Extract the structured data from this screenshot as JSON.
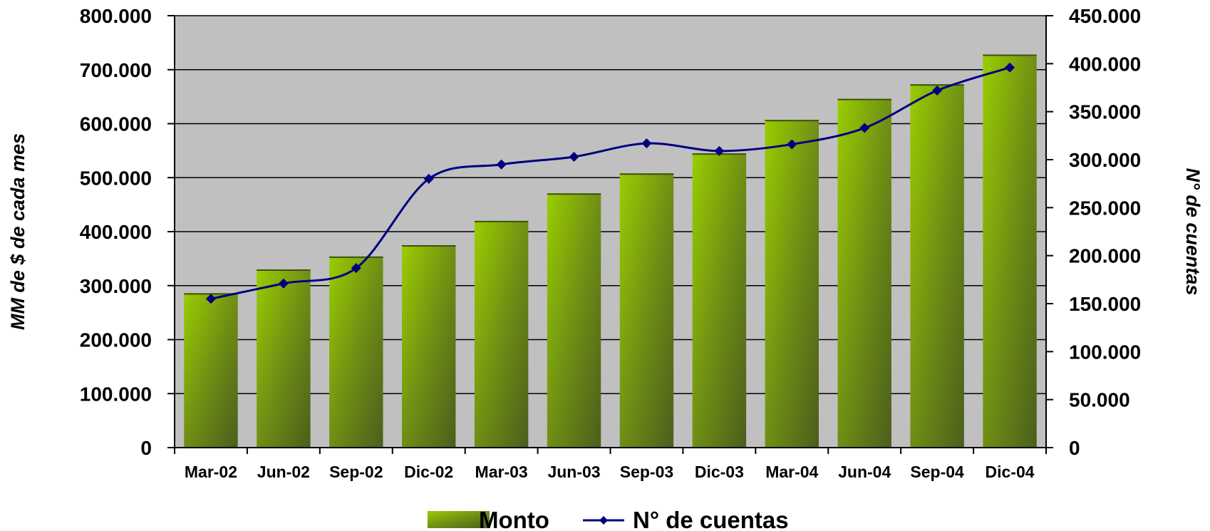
{
  "chart_data": {
    "type": "bar",
    "categories": [
      "Mar-02",
      "Jun-02",
      "Sep-02",
      "Dic-02",
      "Mar-03",
      "Jun-03",
      "Sep-03",
      "Dic-03",
      "Mar-04",
      "Jun-04",
      "Sep-04",
      "Dic-04"
    ],
    "series": [
      {
        "name": "Monto",
        "type": "bar",
        "axis": "left",
        "values": [
          286000,
          330000,
          354000,
          375000,
          420000,
          471000,
          508000,
          545000,
          607000,
          646000,
          673000,
          728000
        ]
      },
      {
        "name": "N° de cuentas",
        "type": "line",
        "axis": "right",
        "values": [
          155000,
          171000,
          187000,
          280000,
          295000,
          303000,
          317000,
          309000,
          316000,
          333000,
          372000,
          396000
        ]
      }
    ],
    "ylabel": "MM de $ de cada mes",
    "y2label": "N° de cuentas",
    "ylim": [
      0,
      800000
    ],
    "y2lim": [
      0,
      450000
    ],
    "yticks": [
      "0",
      "100.000",
      "200.000",
      "300.000",
      "400.000",
      "500.000",
      "600.000",
      "700.000",
      "800.000"
    ],
    "y2ticks": [
      "0",
      "50.000",
      "100.000",
      "150.000",
      "200.000",
      "250.000",
      "300.000",
      "350.000",
      "400.000",
      "450.000"
    ],
    "grid": true,
    "legend_position": "bottom-center",
    "colors": {
      "plot_background": "#c0c0c0",
      "bar_top": "#99cc00",
      "bar_bottom": "#4a5e1a",
      "line": "#000080",
      "grid": "#000000"
    }
  }
}
